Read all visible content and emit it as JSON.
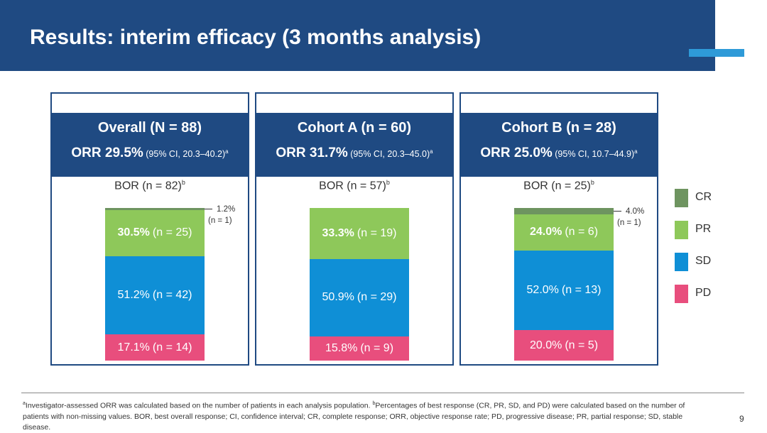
{
  "slide": {
    "title": "Results: interim efficacy (3 months analysis)",
    "page_number": "9"
  },
  "colors": {
    "header": "#1f4a82",
    "accent": "#2e9ad8",
    "CR": "#6e9460",
    "PR": "#8ec85a",
    "SD": "#0f8fd6",
    "PD": "#e84e7d"
  },
  "chart_data": {
    "type": "bar",
    "stacked": true,
    "normalized": true,
    "categories": [
      "Overall",
      "Cohort A",
      "Cohort B"
    ],
    "stack_order": [
      "PD",
      "SD",
      "PR",
      "CR"
    ],
    "panels": [
      {
        "title": "Overall (N = 88)",
        "orr_value": "ORR 29.5%",
        "orr_ci": "(95% CI, 20.3–40.2)",
        "orr_sup": "a",
        "bor_label": "BOR (n = 82)",
        "bor_sup": "b",
        "segments": [
          {
            "category": "PD",
            "percent": 17.1,
            "n": 14,
            "pct_text": "17.1%",
            "n_text": "(n = 14)"
          },
          {
            "category": "SD",
            "percent": 51.2,
            "n": 42,
            "pct_text": "51.2%",
            "n_text": "(n = 42)"
          },
          {
            "category": "PR",
            "percent": 30.5,
            "n": 25,
            "pct_text": "30.5%",
            "n_text": "(n = 25)"
          },
          {
            "category": "CR",
            "percent": 1.2,
            "n": 1,
            "pct_text": "1.2%",
            "n_text": "(n = 1)"
          }
        ]
      },
      {
        "title": "Cohort A (n = 60)",
        "orr_value": "ORR 31.7%",
        "orr_ci": "(95% CI, 20.3–45.0)",
        "orr_sup": "a",
        "bor_label": "BOR (n = 57)",
        "bor_sup": "b",
        "segments": [
          {
            "category": "PD",
            "percent": 15.8,
            "n": 9,
            "pct_text": "15.8%",
            "n_text": "(n = 9)"
          },
          {
            "category": "SD",
            "percent": 50.9,
            "n": 29,
            "pct_text": "50.9%",
            "n_text": "(n = 29)"
          },
          {
            "category": "PR",
            "percent": 33.3,
            "n": 19,
            "pct_text": "33.3%",
            "n_text": "(n = 19)"
          }
        ]
      },
      {
        "title": "Cohort B (n = 28)",
        "orr_value": "ORR 25.0%",
        "orr_ci": "(95% CI, 10.7–44.9)",
        "orr_sup": "a",
        "bor_label": "BOR (n = 25)",
        "bor_sup": "b",
        "segments": [
          {
            "category": "PD",
            "percent": 20.0,
            "n": 5,
            "pct_text": "20.0%",
            "n_text": "(n = 5)"
          },
          {
            "category": "SD",
            "percent": 52.0,
            "n": 13,
            "pct_text": "52.0%",
            "n_text": "(n = 13)"
          },
          {
            "category": "PR",
            "percent": 24.0,
            "n": 6,
            "pct_text": "24.0%",
            "n_text": "(n = 6)"
          },
          {
            "category": "CR",
            "percent": 4.0,
            "n": 1,
            "pct_text": "4.0%",
            "n_text": "(n = 1)"
          }
        ]
      }
    ],
    "legend": {
      "position": "right",
      "entries": [
        "CR",
        "PR",
        "SD",
        "PD"
      ]
    }
  },
  "footnote": {
    "sup_a": "a",
    "text_a": "Investigator-assessed ORR was calculated based on the number of patients in each analysis population. ",
    "sup_b": "b",
    "text_b": "Percentages of best response (CR, PR, SD, and PD) were calculated based on the number of patients with non-missing values. BOR, best overall response; CI, confidence interval; CR, complete response; ORR, objective response rate; PD, progressive disease; PR, partial response; SD, stable disease."
  }
}
